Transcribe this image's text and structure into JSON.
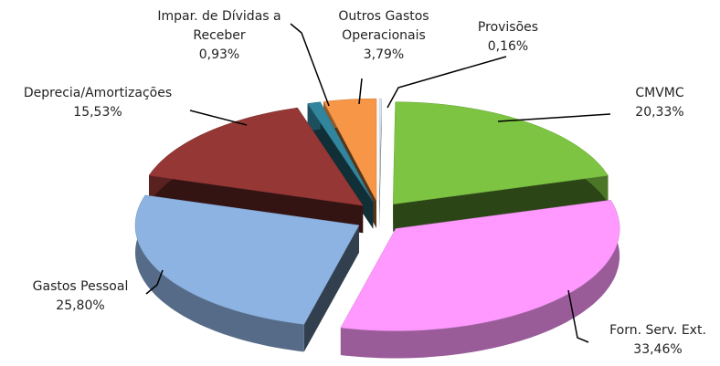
{
  "chart_data": {
    "type": "pie",
    "categories": [
      "Provisões",
      "CMVMC",
      "Forn. Serv. Ext.",
      "Gastos Pessoal",
      "Deprecia/Amortizações",
      "Impar. de Dívidas a Receber",
      "Outros Gastos Operacionais"
    ],
    "values": [
      0.16,
      20.33,
      33.46,
      25.8,
      15.53,
      0.93,
      3.79
    ],
    "value_labels": [
      "0,16%",
      "20,33%",
      "33,46%",
      "25,80%",
      "15,53%",
      "0,93%",
      "3,79%"
    ],
    "colors": [
      "#dce6f2",
      "#7dc443",
      "#ff99ff",
      "#8db3e2",
      "#953735",
      "#31859c",
      "#f79646"
    ]
  }
}
